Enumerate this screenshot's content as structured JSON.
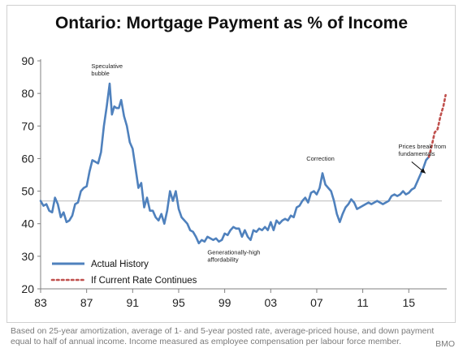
{
  "chart_data": {
    "type": "line",
    "title": "Ontario: Mortgage Payment as % of Income",
    "xlabel": "",
    "ylabel": "",
    "xlim": [
      1983,
      2018.3
    ],
    "ylim": [
      20,
      90
    ],
    "x_ticks": [
      1983,
      1987,
      1991,
      1995,
      1999,
      2003,
      2007,
      2011,
      2015
    ],
    "x_tick_labels": [
      "83",
      "87",
      "91",
      "95",
      "99",
      "03",
      "07",
      "11",
      "15"
    ],
    "y_ticks": [
      20,
      30,
      40,
      50,
      60,
      70,
      80,
      90
    ],
    "y_tick_labels": [
      "20",
      "30",
      "40",
      "50",
      "60",
      "70",
      "80",
      "90"
    ],
    "grid": false,
    "reference_line": 47,
    "legend_position": "bottom-left",
    "series": [
      {
        "name": "Actual History",
        "style": "solid",
        "color": "#4f81bd",
        "points": [
          [
            1983.0,
            47.0
          ],
          [
            1983.25,
            45.5
          ],
          [
            1983.5,
            46.0
          ],
          [
            1983.75,
            44.0
          ],
          [
            1984.0,
            43.5
          ],
          [
            1984.25,
            48.0
          ],
          [
            1984.5,
            46.0
          ],
          [
            1984.75,
            42.0
          ],
          [
            1985.0,
            43.5
          ],
          [
            1985.25,
            40.5
          ],
          [
            1985.5,
            41.0
          ],
          [
            1985.75,
            42.5
          ],
          [
            1986.0,
            46.0
          ],
          [
            1986.25,
            46.5
          ],
          [
            1986.5,
            50.0
          ],
          [
            1986.75,
            51.0
          ],
          [
            1987.0,
            51.5
          ],
          [
            1987.25,
            56.0
          ],
          [
            1987.5,
            59.5
          ],
          [
            1987.75,
            59.0
          ],
          [
            1988.0,
            58.5
          ],
          [
            1988.25,
            62.0
          ],
          [
            1988.5,
            70.0
          ],
          [
            1988.75,
            76.0
          ],
          [
            1989.0,
            83.0
          ],
          [
            1989.2,
            73.5
          ],
          [
            1989.4,
            76.0
          ],
          [
            1989.6,
            75.5
          ],
          [
            1989.8,
            75.5
          ],
          [
            1990.0,
            78.0
          ],
          [
            1990.25,
            73.0
          ],
          [
            1990.5,
            70.0
          ],
          [
            1990.75,
            65.0
          ],
          [
            1991.0,
            63.0
          ],
          [
            1991.25,
            57.0
          ],
          [
            1991.5,
            51.0
          ],
          [
            1991.75,
            52.5
          ],
          [
            1992.0,
            45.0
          ],
          [
            1992.25,
            48.0
          ],
          [
            1992.5,
            44.0
          ],
          [
            1992.75,
            44.0
          ],
          [
            1993.0,
            42.0
          ],
          [
            1993.25,
            41.0
          ],
          [
            1993.5,
            43.0
          ],
          [
            1993.75,
            40.0
          ],
          [
            1994.0,
            44.0
          ],
          [
            1994.25,
            50.0
          ],
          [
            1994.5,
            47.0
          ],
          [
            1994.75,
            50.0
          ],
          [
            1995.0,
            44.5
          ],
          [
            1995.25,
            42.0
          ],
          [
            1995.5,
            41.0
          ],
          [
            1995.75,
            40.0
          ],
          [
            1996.0,
            38.0
          ],
          [
            1996.25,
            37.5
          ],
          [
            1996.5,
            36.0
          ],
          [
            1996.75,
            34.0
          ],
          [
            1997.0,
            35.0
          ],
          [
            1997.25,
            34.5
          ],
          [
            1997.5,
            36.0
          ],
          [
            1997.75,
            35.5
          ],
          [
            1998.0,
            35.0
          ],
          [
            1998.25,
            35.5
          ],
          [
            1998.5,
            34.5
          ],
          [
            1998.75,
            35.0
          ],
          [
            1999.0,
            37.0
          ],
          [
            1999.25,
            36.5
          ],
          [
            1999.5,
            38.0
          ],
          [
            1999.75,
            39.0
          ],
          [
            2000.0,
            38.5
          ],
          [
            2000.25,
            38.5
          ],
          [
            2000.5,
            36.0
          ],
          [
            2000.75,
            38.0
          ],
          [
            2001.0,
            36.0
          ],
          [
            2001.25,
            35.0
          ],
          [
            2001.5,
            38.0
          ],
          [
            2001.75,
            37.5
          ],
          [
            2002.0,
            38.5
          ],
          [
            2002.25,
            38.0
          ],
          [
            2002.5,
            39.0
          ],
          [
            2002.75,
            38.0
          ],
          [
            2003.0,
            40.5
          ],
          [
            2003.25,
            38.0
          ],
          [
            2003.5,
            41.0
          ],
          [
            2003.75,
            40.0
          ],
          [
            2004.0,
            41.0
          ],
          [
            2004.25,
            41.5
          ],
          [
            2004.5,
            41.0
          ],
          [
            2004.75,
            42.5
          ],
          [
            2005.0,
            42.0
          ],
          [
            2005.25,
            45.0
          ],
          [
            2005.5,
            45.5
          ],
          [
            2005.75,
            47.0
          ],
          [
            2006.0,
            48.0
          ],
          [
            2006.25,
            46.5
          ],
          [
            2006.5,
            49.5
          ],
          [
            2006.75,
            50.0
          ],
          [
            2007.0,
            49.0
          ],
          [
            2007.25,
            51.0
          ],
          [
            2007.5,
            55.5
          ],
          [
            2007.75,
            52.0
          ],
          [
            2008.0,
            51.0
          ],
          [
            2008.25,
            50.0
          ],
          [
            2008.5,
            47.0
          ],
          [
            2008.75,
            43.0
          ],
          [
            2009.0,
            40.5
          ],
          [
            2009.25,
            43.0
          ],
          [
            2009.5,
            45.0
          ],
          [
            2009.75,
            46.0
          ],
          [
            2010.0,
            47.5
          ],
          [
            2010.25,
            46.5
          ],
          [
            2010.5,
            44.5
          ],
          [
            2010.75,
            45.0
          ],
          [
            2011.0,
            45.5
          ],
          [
            2011.25,
            46.0
          ],
          [
            2011.5,
            46.5
          ],
          [
            2011.75,
            46.0
          ],
          [
            2012.0,
            46.5
          ],
          [
            2012.25,
            47.0
          ],
          [
            2012.5,
            46.5
          ],
          [
            2012.75,
            46.0
          ],
          [
            2013.0,
            46.5
          ],
          [
            2013.25,
            47.0
          ],
          [
            2013.5,
            48.5
          ],
          [
            2013.75,
            49.0
          ],
          [
            2014.0,
            48.5
          ],
          [
            2014.25,
            49.0
          ],
          [
            2014.5,
            50.0
          ],
          [
            2014.75,
            49.0
          ],
          [
            2015.0,
            49.5
          ],
          [
            2015.25,
            50.5
          ],
          [
            2015.5,
            51.0
          ],
          [
            2015.75,
            53.0
          ],
          [
            2016.0,
            55.0
          ],
          [
            2016.25,
            57.0
          ],
          [
            2016.5,
            59.5
          ],
          [
            2016.75,
            60.5
          ]
        ]
      },
      {
        "name": "If Current Rate Continues",
        "style": "dotted",
        "color": "#c0504d",
        "points": [
          [
            2016.75,
            60.5
          ],
          [
            2017.0,
            64.0
          ],
          [
            2017.25,
            68.0
          ],
          [
            2017.5,
            69.0
          ],
          [
            2017.75,
            73.0
          ],
          [
            2018.0,
            76.0
          ],
          [
            2018.2,
            79.5
          ]
        ]
      }
    ],
    "annotations": [
      {
        "text_lines": [
          "Speculative",
          "bubble"
        ],
        "x": 1987.4,
        "y": 87.7
      },
      {
        "text_lines": [
          "Generationally-high",
          "affordability"
        ],
        "x": 1997.5,
        "y": 30.6
      },
      {
        "text_lines": [
          "Correction"
        ],
        "x": 2006.1,
        "y": 59.4
      },
      {
        "text_lines": [
          "Prices break from",
          "fundamentals"
        ],
        "x": 2014.1,
        "y": 63.1
      }
    ],
    "arrow": {
      "from": [
        2015.25,
        59.0
      ],
      "to": [
        2016.45,
        55.5
      ]
    }
  },
  "footnote": "Based on 25-year amortization, average of 1- and 5-year posted rate, average-priced house, and down payment equal to half of annual income. Income measured as employee compensation per labour force member.",
  "source_label": "BMO"
}
